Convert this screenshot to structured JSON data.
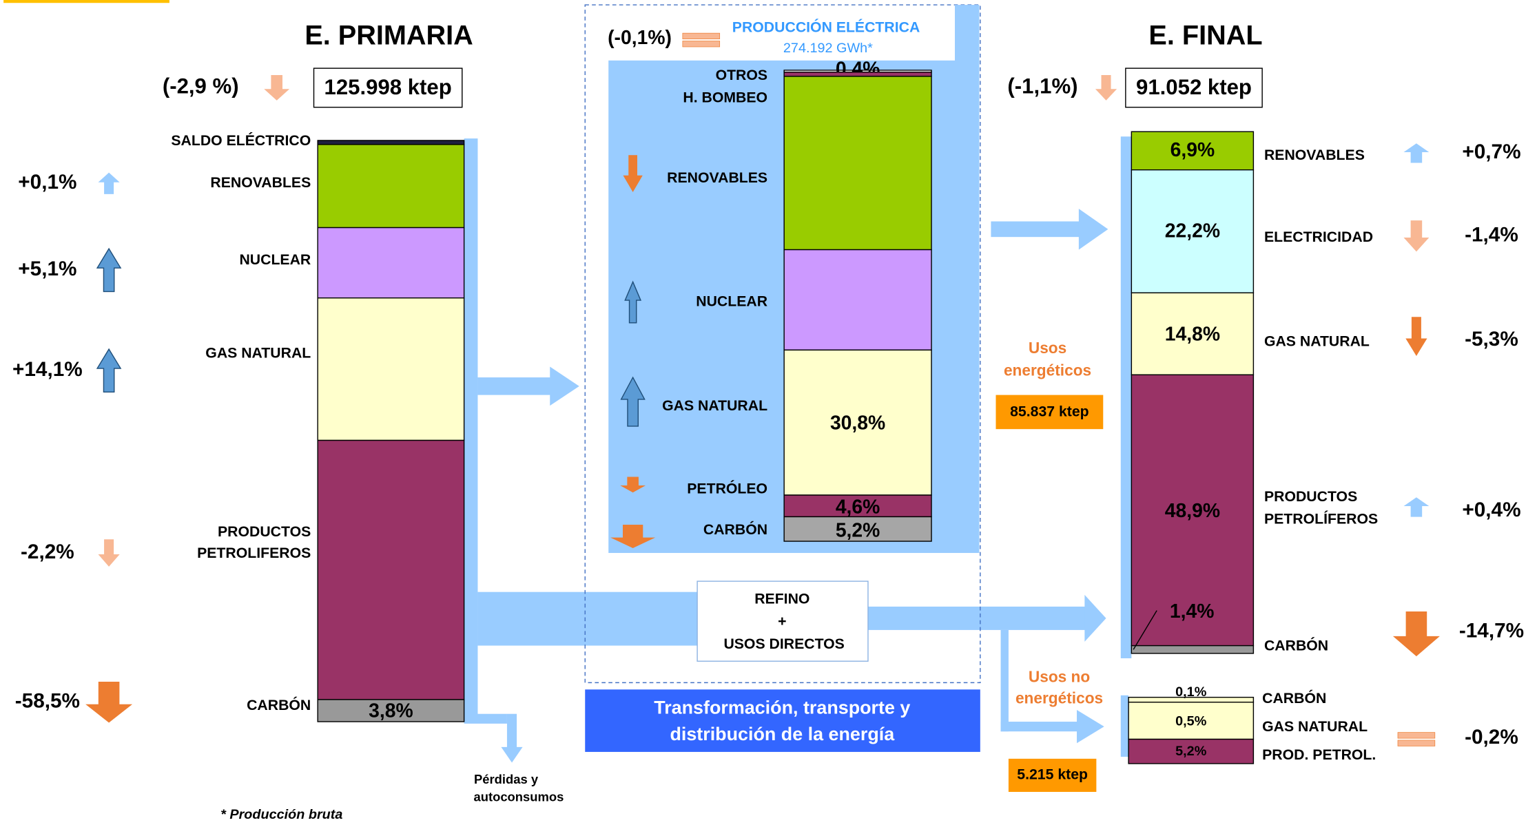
{
  "primaria": {
    "title": "E. PRIMARIA",
    "change": "(-2,9 %)",
    "total": "125.998 ktep",
    "segments": [
      {
        "name": "SALDO ELÉCTRICO",
        "value": 0.7,
        "color": "#1f1f3f"
      },
      {
        "name": "RENOVABLES",
        "value": 14.3,
        "label": "14,3%",
        "change": "+0,1%",
        "color": "#99cc00"
      },
      {
        "name": "NUCLEAR",
        "value": 12.1,
        "label": "12,1%",
        "change": "+5,1%",
        "color": "#cc99ff"
      },
      {
        "name": "GAS NATURAL",
        "value": 24.5,
        "label": "24,5%",
        "change": "+14,1%",
        "color": "#ffffcc"
      },
      {
        "name": [
          "PRODUCTOS",
          "PETROLIFEROS"
        ],
        "value": 44.6,
        "label": "44,6%",
        "change": "-2,2%",
        "color": "#993366"
      },
      {
        "name": "CARBÓN",
        "value": 3.8,
        "label": "3,8%",
        "change": "-58,5%",
        "color": "#999999"
      }
    ]
  },
  "electrica": {
    "title": "PRODUCCIÓN ELÉCTRICA",
    "subtitle": "274.192 GWh*",
    "change": "(-0,1%)",
    "segments": [
      {
        "name": "OTROS",
        "value": 0.4,
        "label": "0,4%",
        "color": "#ffffff"
      },
      {
        "name": "H. BOMBEO",
        "value": 0.9,
        "label": "0,9%",
        "color": "#993366"
      },
      {
        "name": "RENOVABLES",
        "value": 36.8,
        "label": "36,8%",
        "color": "#99cc00"
      },
      {
        "name": "NUCLEAR",
        "value": 21.3,
        "label": "21,3%",
        "color": "#cc99ff"
      },
      {
        "name": "GAS NATURAL",
        "value": 30.8,
        "label": "30,8%",
        "color": "#ffffcc"
      },
      {
        "name": "PETRÓLEO",
        "value": 4.6,
        "label": "4,6%",
        "color": "#993366"
      },
      {
        "name": "CARBÓN",
        "value": 5.2,
        "label": "5,2%",
        "color": "#a6a6a6"
      }
    ]
  },
  "refino": [
    "REFINO",
    "+",
    "USOS DIRECTOS"
  ],
  "transformacion": [
    "Transformación, transporte y",
    "distribución de la energía"
  ],
  "perdidas": [
    "Pérdidas y",
    "autoconsumos"
  ],
  "footnote": "* Producción bruta",
  "final": {
    "title": "E. FINAL",
    "change": "(-1,1%)",
    "total": "91.052 ktep",
    "segments": [
      {
        "name": "RENOVABLES",
        "value": 6.9,
        "label": "6,9%",
        "change": "+0,7%",
        "color": "#99cc00"
      },
      {
        "name": "ELECTRICIDAD",
        "value": 22.2,
        "label": "22,2%",
        "change": "-1,4%",
        "color": "#ccffff"
      },
      {
        "name": "GAS NATURAL",
        "value": 14.8,
        "label": "14,8%",
        "change": "-5,3%",
        "color": "#ffffcc"
      },
      {
        "name": [
          "PRODUCTOS",
          "PETROLÍFEROS"
        ],
        "value": 48.9,
        "label": "48,9%",
        "change": "+0,4%",
        "color": "#993366"
      },
      {
        "name": "CARBÓN",
        "value": 1.4,
        "label": "1,4%",
        "change": "-14,7%",
        "color": "#999999"
      }
    ]
  },
  "usos_energeticos": {
    "title": [
      "Usos",
      "energéticos"
    ],
    "total": "85.837  ktep"
  },
  "usos_no_energeticos": {
    "title": [
      "Usos no",
      "energéticos"
    ],
    "total": "5.215 ktep",
    "change": "-0,2%",
    "segments": [
      {
        "name": "CARBÓN",
        "label": "0,1%",
        "color": "#ffffcc"
      },
      {
        "name": "GAS NATURAL",
        "label": "0,5%",
        "color": "#ffffcc"
      },
      {
        "name": "PROD. PETROL.",
        "label": "5,2%",
        "color": "#993366"
      }
    ]
  }
}
